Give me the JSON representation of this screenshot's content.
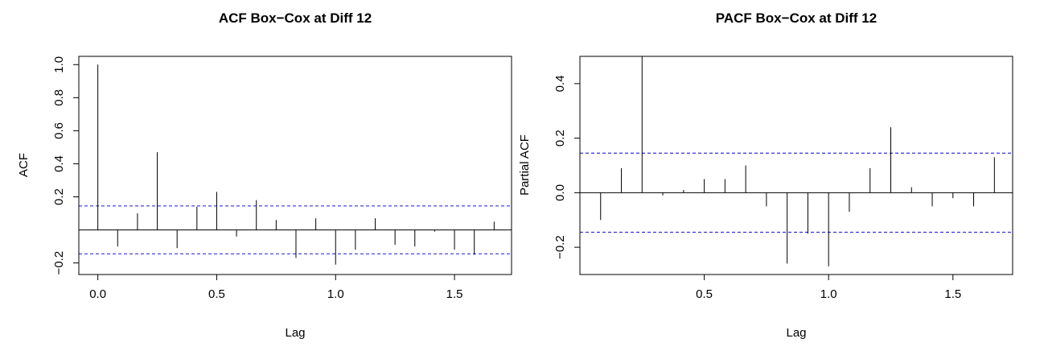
{
  "chart_data": [
    {
      "type": "bar",
      "variant": "acf-stem",
      "title": "ACF Box−Cox at Diff 12",
      "xlabel": "Lag",
      "ylabel": "ACF",
      "xlim": [
        -0.08,
        1.74
      ],
      "ylim": [
        -0.27,
        1.05
      ],
      "xticks": [
        0.0,
        0.5,
        1.0,
        1.5
      ],
      "xtick_labels": [
        "0.0",
        "0.5",
        "1.0",
        "1.5"
      ],
      "yticks": [
        -0.2,
        0.2,
        0.4,
        0.6,
        0.8,
        1.0
      ],
      "ytick_labels": [
        "−0.2",
        "0.2",
        "0.4",
        "0.6",
        "0.8",
        "1.0"
      ],
      "confidence_band": 0.145,
      "zero_line": true,
      "grid": false,
      "x": [
        0.0,
        0.0833,
        0.1667,
        0.25,
        0.3333,
        0.4167,
        0.5,
        0.5833,
        0.6667,
        0.75,
        0.8333,
        0.9167,
        1.0,
        1.0833,
        1.1667,
        1.25,
        1.3333,
        1.4167,
        1.5,
        1.5833,
        1.6667
      ],
      "values": [
        1.0,
        -0.1,
        0.1,
        0.47,
        -0.11,
        0.14,
        0.23,
        -0.04,
        0.18,
        0.06,
        -0.17,
        0.07,
        -0.21,
        -0.12,
        0.07,
        -0.09,
        -0.1,
        -0.01,
        -0.12,
        -0.15,
        0.05
      ],
      "colors": {
        "stem": "#000000",
        "band": "#3333dd"
      }
    },
    {
      "type": "bar",
      "variant": "pacf-stem",
      "title": "PACF Box−Cox at Diff 12",
      "xlabel": "Lag",
      "ylabel": "Partial ACF",
      "xlim": [
        0.0,
        1.74
      ],
      "ylim": [
        -0.3,
        0.5
      ],
      "xticks": [
        0.5,
        1.0,
        1.5
      ],
      "xtick_labels": [
        "0.5",
        "1.0",
        "1.5"
      ],
      "yticks": [
        -0.2,
        0.0,
        0.2,
        0.4
      ],
      "ytick_labels": [
        "−0.2",
        "0.0",
        "0.2",
        "0.4"
      ],
      "confidence_band": 0.145,
      "zero_line": true,
      "grid": false,
      "x": [
        0.0833,
        0.1667,
        0.25,
        0.3333,
        0.4167,
        0.5,
        0.5833,
        0.6667,
        0.75,
        0.8333,
        0.9167,
        1.0,
        1.0833,
        1.1667,
        1.25,
        1.3333,
        1.4167,
        1.5,
        1.5833,
        1.6667
      ],
      "values": [
        -0.1,
        0.09,
        0.5,
        -0.01,
        0.01,
        0.05,
        0.05,
        0.1,
        -0.05,
        -0.26,
        -0.15,
        -0.27,
        -0.07,
        0.09,
        0.24,
        0.02,
        -0.05,
        -0.02,
        -0.05,
        0.13
      ],
      "colors": {
        "stem": "#000000",
        "band": "#3333dd"
      }
    }
  ]
}
